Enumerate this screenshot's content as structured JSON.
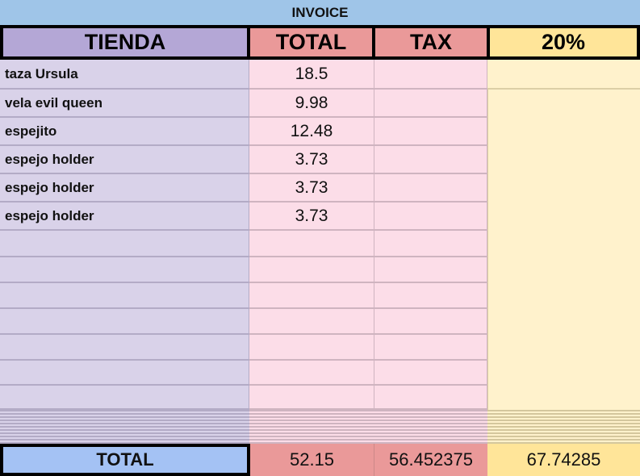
{
  "title": "INVOICE",
  "headers": [
    "TIENDA",
    "TOTAL",
    "TAX",
    "20%"
  ],
  "rows": [
    {
      "tienda": "taza Ursula",
      "total": "18.5"
    },
    {
      "tienda": "vela evil queen",
      "total": "9.98"
    },
    {
      "tienda": "espejito",
      "total": "12.48"
    },
    {
      "tienda": "espejo holder",
      "total": "3.73"
    },
    {
      "tienda": "espejo holder",
      "total": "3.73"
    },
    {
      "tienda": "espejo holder",
      "total": "3.73"
    },
    {
      "tienda": "",
      "total": ""
    },
    {
      "tienda": "",
      "total": ""
    },
    {
      "tienda": "",
      "total": ""
    },
    {
      "tienda": "",
      "total": ""
    },
    {
      "tienda": "",
      "total": ""
    },
    {
      "tienda": "",
      "total": ""
    },
    {
      "tienda": "",
      "total": ""
    }
  ],
  "totals": {
    "label": "TOTAL",
    "total": "52.15",
    "tax": "56.452375",
    "pct": "67.74285"
  },
  "colors": {
    "title": "#9fc5e8",
    "tienda_header": "#b4a7d6",
    "total_header": "#ea9999",
    "pct_header": "#ffe599",
    "tienda_body": "#d9d2e9",
    "total_body": "#fcdde8",
    "pct_body": "#fff2cc",
    "total_label": "#a4c2f4"
  }
}
